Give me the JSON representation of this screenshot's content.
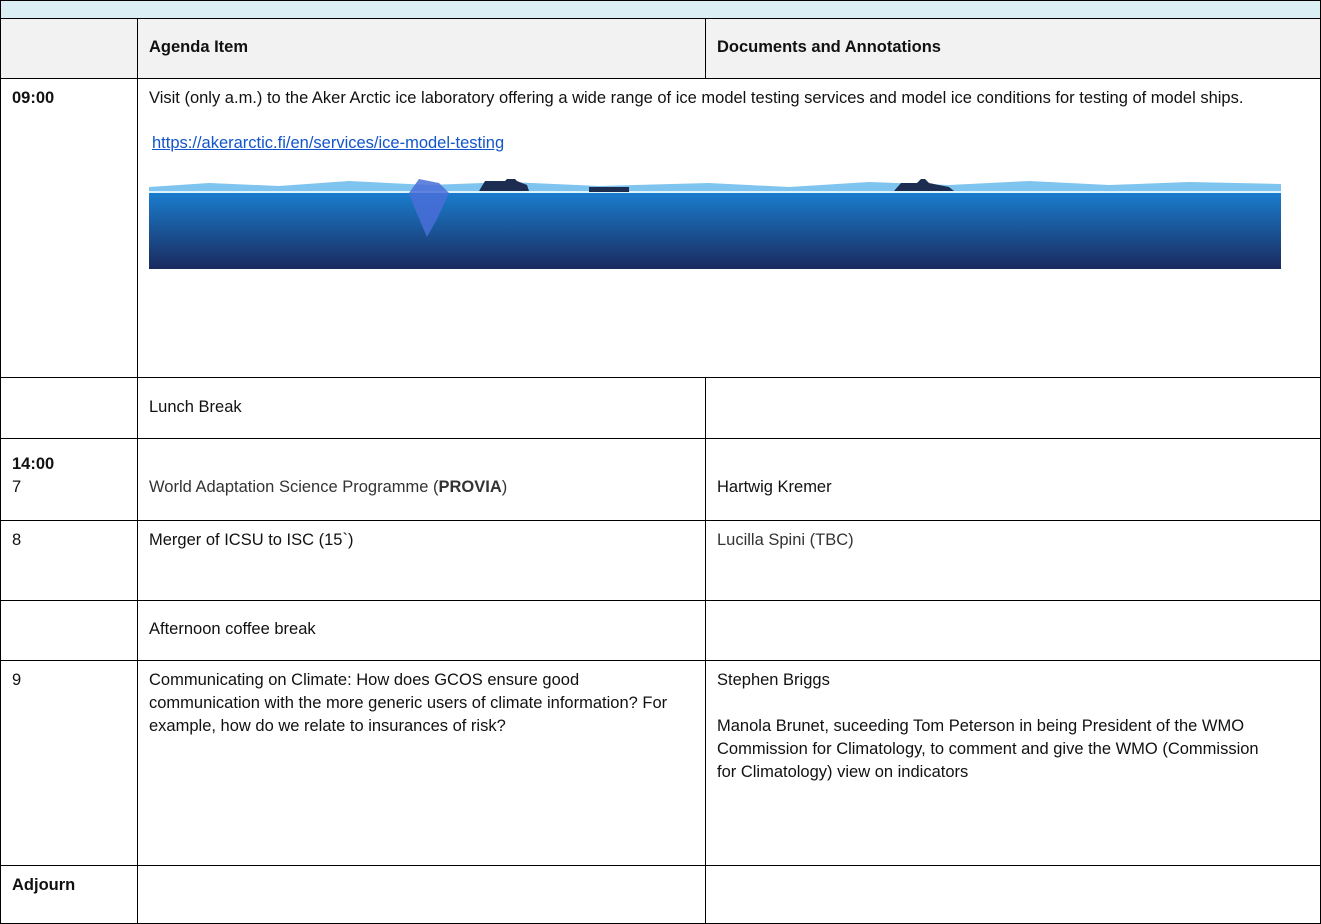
{
  "table": {
    "header": {
      "item": "Agenda Item",
      "docs": "Documents and Annotations"
    },
    "rows": [
      {
        "time": "09:00",
        "item": "Visit (only a.m.) to  the Aker Arctic ice laboratory offering a wide range of ice model testing services and model ice conditions for testing of model ships.",
        "link": "https://akerarctic.fi/en/services/ice-model-testing"
      },
      {
        "item": "Lunch Break"
      },
      {
        "time": "14:00",
        "number": "7",
        "item": [
          "World Adaptation Science Programme (",
          "PROVIA",
          ")"
        ],
        "docs": "Hartwig Kremer"
      },
      {
        "number": "8",
        "item": "Merger of ICSU to ISC (15`)",
        "docs": "Lucilla Spini (TBC)"
      },
      {
        "item": "Afternoon coffee break"
      },
      {
        "number": "9",
        "item": "Communicating on Climate: How does GCOS ensure good communication with the more generic users of climate information? For example, how do we relate to insurances of risk?",
        "docs": [
          "Stephen Briggs",
          "Manola Brunet, suceeding Tom Peterson in being President of the WMO Commission for Climatology, to comment and give the WMO (Commission for Climatology) view on indicators"
        ]
      },
      {
        "time": "Adjourn"
      }
    ]
  }
}
